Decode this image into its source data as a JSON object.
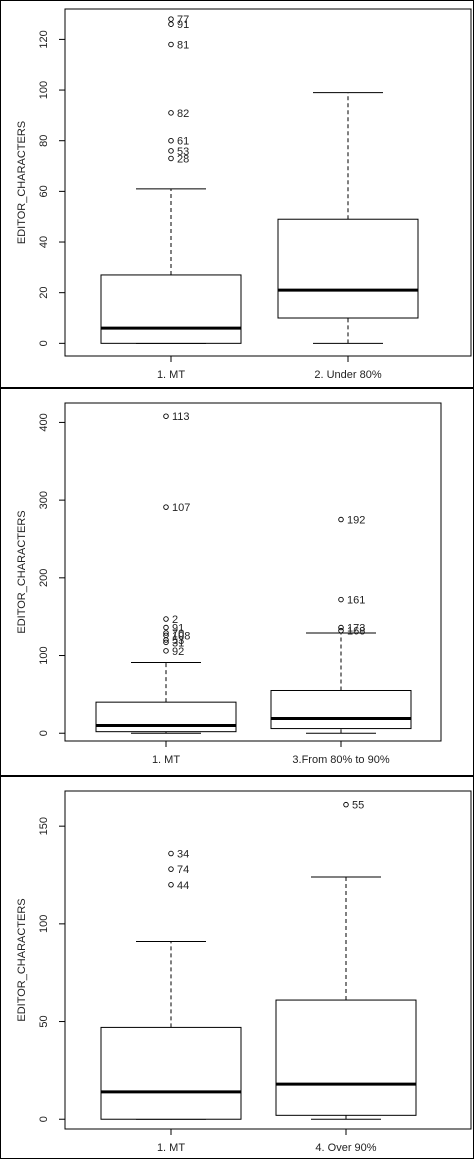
{
  "chart_data": [
    {
      "type": "boxplot",
      "ylabel": "EDITOR_CHARACTERS",
      "ylim": [
        -5,
        132
      ],
      "yticks": [
        0,
        20,
        40,
        60,
        80,
        100,
        120
      ],
      "ytick_labels": [
        "0",
        "20",
        "40",
        "60",
        "80",
        "100",
        "120"
      ],
      "categories": [
        "1. MT",
        "2. Under 80%"
      ],
      "boxes": [
        {
          "min": 0,
          "q1": 0,
          "median": 6,
          "q3": 27,
          "max": 61,
          "outliers": [
            {
              "value": 128,
              "label": "77"
            },
            {
              "value": 126,
              "label": "91"
            },
            {
              "value": 118,
              "label": "81"
            },
            {
              "value": 91,
              "label": "82"
            },
            {
              "value": 80,
              "label": "61"
            },
            {
              "value": 76,
              "label": "53"
            },
            {
              "value": 73,
              "label": "28"
            }
          ]
        },
        {
          "min": 0,
          "q1": 10,
          "median": 21,
          "q3": 49,
          "max": 99,
          "outliers": []
        }
      ]
    },
    {
      "type": "boxplot",
      "ylabel": "EDITOR_CHARACTERS",
      "ylim": [
        -10,
        425
      ],
      "yticks": [
        0,
        100,
        200,
        300,
        400
      ],
      "ytick_labels": [
        "0",
        "100",
        "200",
        "300",
        "400"
      ],
      "categories": [
        "1. MT",
        "3.From 80% to 90%"
      ],
      "boxes": [
        {
          "min": 0,
          "q1": 2,
          "median": 10,
          "q3": 40,
          "max": 91,
          "outliers": [
            {
              "value": 408,
              "label": "113"
            },
            {
              "value": 291,
              "label": "107"
            },
            {
              "value": 147,
              "label": "2"
            },
            {
              "value": 136,
              "label": "91"
            },
            {
              "value": 129,
              "label": "70"
            },
            {
              "value": 126,
              "label": "108"
            },
            {
              "value": 120,
              "label": "53"
            },
            {
              "value": 117,
              "label": "31"
            },
            {
              "value": 106,
              "label": "92"
            }
          ]
        },
        {
          "min": 0,
          "q1": 6,
          "median": 19,
          "q3": 55,
          "max": 129,
          "outliers": [
            {
              "value": 275,
              "label": "192"
            },
            {
              "value": 172,
              "label": "161"
            },
            {
              "value": 136,
              "label": "173"
            },
            {
              "value": 132,
              "label": "168"
            }
          ]
        }
      ]
    },
    {
      "type": "boxplot",
      "ylabel": "EDITOR_CHARACTERS",
      "ylim": [
        -5,
        168
      ],
      "yticks": [
        0,
        50,
        100,
        150
      ],
      "ytick_labels": [
        "0",
        "50",
        "100",
        "150"
      ],
      "categories": [
        "1. MT",
        "4. Over 90%"
      ],
      "boxes": [
        {
          "min": 0,
          "q1": 0,
          "median": 14,
          "q3": 47,
          "max": 91,
          "outliers": [
            {
              "value": 136,
              "label": "34"
            },
            {
              "value": 128,
              "label": "74"
            },
            {
              "value": 120,
              "label": "44"
            }
          ]
        },
        {
          "min": 0,
          "q1": 2,
          "median": 18,
          "q3": 61,
          "max": 124,
          "outliers": [
            {
              "value": 161,
              "label": "55"
            }
          ]
        }
      ]
    }
  ]
}
